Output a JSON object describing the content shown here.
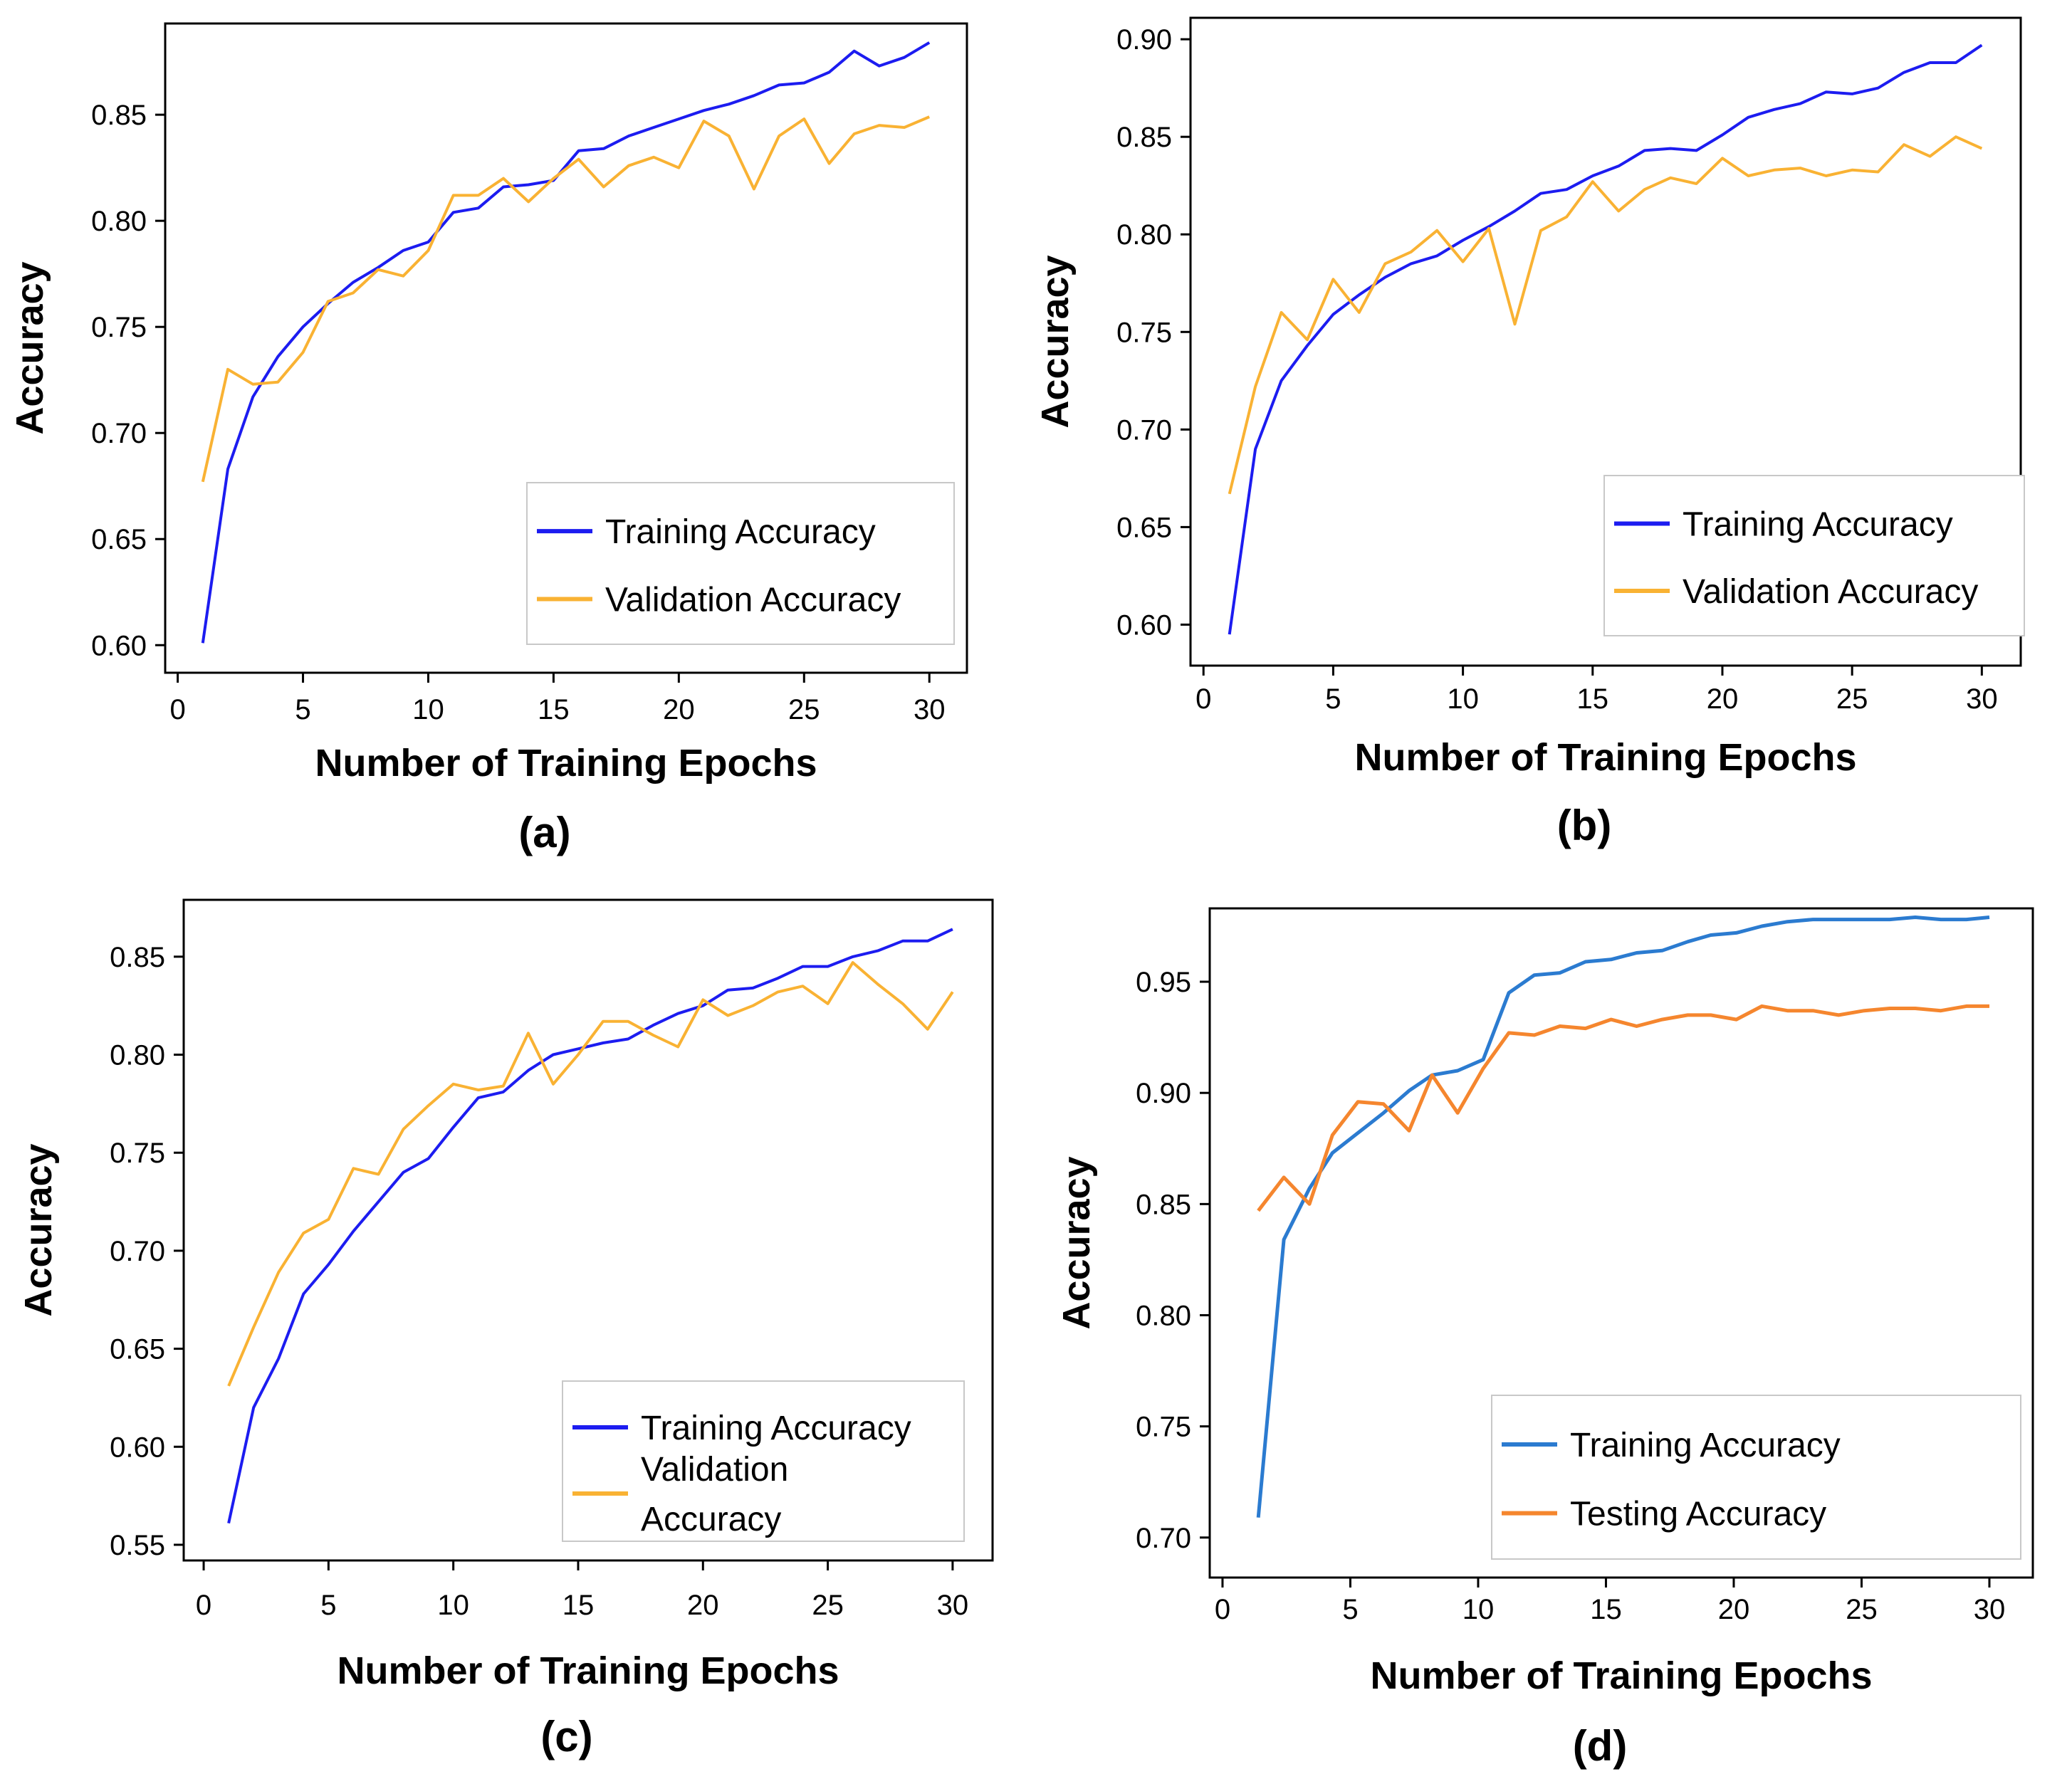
{
  "chart_data": [
    {
      "id": "a",
      "type": "line",
      "caption": "(a)",
      "xlabel": "Number of Training Epochs",
      "ylabel": "Accuracy",
      "xlim": [
        -0.5,
        31.5
      ],
      "ylim": [
        0.587,
        0.893
      ],
      "xticks": [
        0,
        5,
        10,
        15,
        20,
        25,
        30
      ],
      "yticks": [
        "0.60",
        "0.65",
        "0.70",
        "0.75",
        "0.80",
        "0.85"
      ],
      "legend_position": "lower-right",
      "x": [
        1,
        2,
        3,
        4,
        5,
        6,
        7,
        8,
        9,
        10,
        11,
        12,
        13,
        14,
        15,
        16,
        17,
        18,
        19,
        20,
        21,
        22,
        23,
        24,
        25,
        26,
        27,
        28,
        29,
        30
      ],
      "series": [
        {
          "name": "Training Accuracy",
          "color": "#1c1cf0",
          "values": [
            0.601,
            0.683,
            0.717,
            0.736,
            0.75,
            0.761,
            0.771,
            0.778,
            0.786,
            0.79,
            0.804,
            0.806,
            0.816,
            0.817,
            0.819,
            0.833,
            0.834,
            0.84,
            0.844,
            0.848,
            0.852,
            0.855,
            0.859,
            0.864,
            0.865,
            0.87,
            0.88,
            0.873,
            0.877,
            0.884
          ]
        },
        {
          "name": "Validation Accuracy",
          "color": "#f9b233",
          "values": [
            0.677,
            0.73,
            0.723,
            0.724,
            0.738,
            0.762,
            0.766,
            0.777,
            0.774,
            0.786,
            0.812,
            0.812,
            0.82,
            0.809,
            0.82,
            0.829,
            0.816,
            0.826,
            0.83,
            0.825,
            0.847,
            0.84,
            0.815,
            0.84,
            0.848,
            0.827,
            0.841,
            0.845,
            0.844,
            0.849
          ]
        }
      ]
    },
    {
      "id": "b",
      "type": "line",
      "caption": "(b)",
      "xlabel": "Number of Training Epochs",
      "ylabel": "Accuracy",
      "xlim": [
        -0.5,
        31.5
      ],
      "ylim": [
        0.579,
        0.911
      ],
      "xticks": [
        0,
        5,
        10,
        15,
        20,
        25,
        30
      ],
      "yticks": [
        "0.60",
        "0.65",
        "0.70",
        "0.75",
        "0.80",
        "0.85",
        "0.90"
      ],
      "legend_position": "lower-right",
      "x": [
        1,
        2,
        3,
        4,
        5,
        6,
        7,
        8,
        9,
        10,
        11,
        12,
        13,
        14,
        15,
        16,
        17,
        18,
        19,
        20,
        21,
        22,
        23,
        24,
        25,
        26,
        27,
        28,
        29,
        30
      ],
      "series": [
        {
          "name": "Training Accuracy",
          "color": "#1c1cf0",
          "values": [
            0.595,
            0.69,
            0.725,
            0.743,
            0.759,
            0.769,
            0.778,
            0.785,
            0.789,
            0.797,
            0.804,
            0.812,
            0.821,
            0.823,
            0.83,
            0.835,
            0.843,
            0.844,
            0.843,
            0.851,
            0.86,
            0.864,
            0.867,
            0.873,
            0.872,
            0.875,
            0.883,
            0.888,
            0.888,
            0.897
          ]
        },
        {
          "name": "Validation Accuracy",
          "color": "#f9b233",
          "values": [
            0.667,
            0.722,
            0.76,
            0.746,
            0.777,
            0.76,
            0.785,
            0.791,
            0.802,
            0.786,
            0.803,
            0.754,
            0.802,
            0.809,
            0.827,
            0.812,
            0.823,
            0.829,
            0.826,
            0.839,
            0.83,
            0.833,
            0.834,
            0.83,
            0.833,
            0.832,
            0.846,
            0.84,
            0.85,
            0.844
          ]
        }
      ]
    },
    {
      "id": "c",
      "type": "line",
      "caption": "(c)",
      "xlabel": "Number of Training Epochs",
      "ylabel": "Accuracy",
      "xlim": [
        -0.8,
        31.6
      ],
      "ylim": [
        0.542,
        0.879
      ],
      "xticks": [
        0,
        5,
        10,
        15,
        20,
        25,
        30
      ],
      "yticks": [
        "0.55",
        "0.60",
        "0.65",
        "0.70",
        "0.75",
        "0.80",
        "0.85"
      ],
      "legend_position": "lower-right",
      "x": [
        1,
        2,
        3,
        4,
        5,
        6,
        7,
        8,
        9,
        10,
        11,
        12,
        13,
        14,
        15,
        16,
        17,
        18,
        19,
        20,
        21,
        22,
        23,
        24,
        25,
        26,
        27,
        28,
        29,
        30
      ],
      "series": [
        {
          "name": "Training Accuracy",
          "color": "#1c1cf0",
          "values": [
            0.561,
            0.62,
            0.645,
            0.678,
            0.693,
            0.71,
            0.725,
            0.74,
            0.747,
            0.763,
            0.778,
            0.781,
            0.792,
            0.8,
            0.803,
            0.806,
            0.808,
            0.815,
            0.821,
            0.825,
            0.833,
            0.834,
            0.839,
            0.845,
            0.845,
            0.85,
            0.853,
            0.858,
            0.858,
            0.864
          ]
        },
        {
          "name": "Validation Accuracy",
          "name_line2": "Accuracy",
          "name_line1": "Validation",
          "color": "#f9b233",
          "values": [
            0.631,
            0.661,
            0.689,
            0.709,
            0.716,
            0.742,
            0.739,
            0.762,
            0.774,
            0.785,
            0.782,
            0.784,
            0.811,
            0.785,
            0.8,
            0.817,
            0.817,
            0.81,
            0.804,
            0.828,
            0.82,
            0.825,
            0.832,
            0.835,
            0.826,
            0.847,
            0.836,
            0.826,
            0.813,
            0.832
          ]
        }
      ]
    },
    {
      "id": "d",
      "type": "line",
      "caption": "(d)",
      "xlabel": "Number of Training Epochs",
      "ylabel": "Accuracy",
      "xlim": [
        -0.5,
        31.7
      ],
      "ylim": [
        0.682,
        0.983
      ],
      "xticks": [
        0,
        5,
        10,
        15,
        20,
        25,
        30
      ],
      "yticks": [
        "0.70",
        "0.75",
        "0.80",
        "0.85",
        "0.90",
        "0.95"
      ],
      "legend_position": "lower-right",
      "x": [
        1.4,
        2.4,
        3.4,
        4.3,
        5.3,
        6.3,
        7.3,
        8.2,
        9.2,
        10.2,
        11.2,
        12.2,
        13.2,
        14.2,
        15.2,
        16.2,
        17.2,
        18.2,
        19.1,
        20.1,
        21.1,
        22.1,
        23.1,
        24.1,
        25.1,
        26.1,
        27.1,
        28.1,
        29.1,
        30
      ],
      "series": [
        {
          "name": "Training Accuracy",
          "color": "#2b7bd0",
          "values": [
            0.709,
            0.834,
            0.857,
            0.873,
            0.882,
            0.891,
            0.901,
            0.908,
            0.91,
            0.915,
            0.945,
            0.953,
            0.954,
            0.959,
            0.96,
            0.963,
            0.964,
            0.968,
            0.971,
            0.972,
            0.975,
            0.977,
            0.978,
            0.978,
            0.978,
            0.978,
            0.979,
            0.978,
            0.978,
            0.979
          ]
        },
        {
          "name": "Testing Accuracy",
          "color": "#f5862e",
          "values": [
            0.847,
            0.862,
            0.85,
            0.881,
            0.896,
            0.895,
            0.883,
            0.908,
            0.891,
            0.911,
            0.927,
            0.926,
            0.93,
            0.929,
            0.933,
            0.93,
            0.933,
            0.935,
            0.935,
            0.933,
            0.939,
            0.937,
            0.937,
            0.935,
            0.937,
            0.938,
            0.938,
            0.937,
            0.939,
            0.939
          ]
        }
      ]
    }
  ]
}
